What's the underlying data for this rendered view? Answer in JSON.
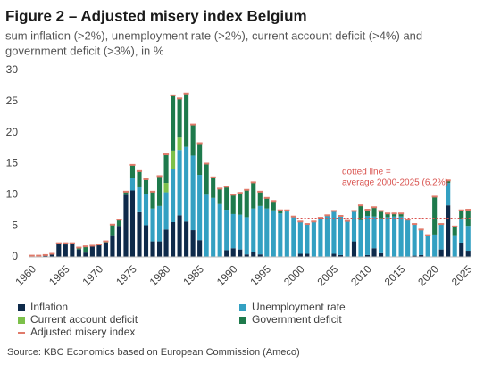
{
  "chart_data": {
    "type": "stacked_bar",
    "title": "Figure 2 – Adjusted misery index Belgium",
    "subtitle": [
      "sum inflation (>2%), unemployment rate (>2%), current account deficit (>4%) and",
      "government deficit (>3%), in %"
    ],
    "source": "Source: KBC Economics based on European Commission (Ameco)",
    "categories": [
      "1960",
      null,
      null,
      null,
      null,
      "1965",
      null,
      null,
      null,
      null,
      "1970",
      null,
      null,
      null,
      null,
      "1975",
      null,
      null,
      null,
      null,
      "1980",
      null,
      null,
      null,
      null,
      "1985",
      null,
      null,
      null,
      null,
      "1990",
      null,
      null,
      null,
      null,
      "1995",
      null,
      null,
      null,
      null,
      "2000",
      null,
      null,
      null,
      null,
      "2005",
      null,
      null,
      null,
      null,
      "2010",
      null,
      null,
      null,
      null,
      "2015",
      null,
      null,
      null,
      null,
      "2020",
      null,
      null,
      null,
      null,
      "2025"
    ],
    "series": [
      {
        "name": "Inflation",
        "color": "#0e2a4a",
        "values": [
          0.2,
          0.2,
          0.3,
          0.5,
          2.2,
          2.0,
          2.2,
          1.2,
          0.7,
          1.8,
          1.9,
          2.3,
          3.5,
          5.0,
          10.0,
          10.7,
          7.2,
          5.1,
          2.5,
          2.5,
          4.4,
          5.6,
          6.7,
          5.7,
          4.3,
          2.7,
          0,
          0,
          0,
          1.1,
          1.4,
          1.2,
          0.4,
          0.8,
          0.4,
          0,
          0,
          0,
          0,
          0,
          0.5,
          0.5,
          0,
          0,
          0,
          0.5,
          0.3,
          0,
          2.5,
          0,
          0.3,
          1.4,
          0.6,
          0,
          0,
          0,
          0,
          0.2,
          0.3,
          0,
          0,
          1.2,
          8.3,
          0,
          2.3,
          1.0
        ]
      },
      {
        "name": "Unemployment rate",
        "color": "#33a0c2",
        "values": [
          0,
          0,
          0,
          0,
          0,
          0,
          0,
          0,
          0,
          0,
          0,
          0,
          0,
          0,
          0,
          2.0,
          4.0,
          5.0,
          5.3,
          5.7,
          6.0,
          8.5,
          10.5,
          12.0,
          12.0,
          10.5,
          10.0,
          9.5,
          8.5,
          6.5,
          5.5,
          5.6,
          6.0,
          7.0,
          7.8,
          7.8,
          7.5,
          7.0,
          7.3,
          6.5,
          5.2,
          4.8,
          5.7,
          6.3,
          6.7,
          6.9,
          6.3,
          5.8,
          4.9,
          5.9,
          6.3,
          5.1,
          5.6,
          6.4,
          6.5,
          6.5,
          6.0,
          5.1,
          4.1,
          3.5,
          3.6,
          4.1,
          3.6,
          3.5,
          3.7,
          4.0
        ]
      },
      {
        "name": "Current account deficit",
        "color": "#7cc04a",
        "values": [
          0,
          0,
          0,
          0,
          0,
          0,
          0,
          0,
          0,
          0,
          0,
          0,
          0,
          0,
          0,
          0,
          0,
          0,
          0,
          0,
          1.5,
          3.0,
          2.0,
          0,
          0,
          0,
          0,
          0,
          0,
          0,
          0,
          0,
          0,
          0,
          0,
          0,
          0,
          0,
          0,
          0,
          0,
          0,
          0,
          0,
          0,
          0,
          0,
          0,
          0,
          0,
          0,
          0,
          0,
          0,
          0,
          0,
          0,
          0,
          0,
          0,
          0,
          0,
          0,
          0,
          0,
          0
        ]
      },
      {
        "name": "Government deficit",
        "color": "#1e7a4c",
        "values": [
          0,
          0,
          0,
          0,
          0,
          0.2,
          0,
          0.3,
          1.0,
          0,
          0.1,
          0.2,
          1.7,
          1.0,
          0.5,
          2.1,
          2.6,
          2.4,
          2.7,
          4.8,
          4.6,
          8.9,
          6.3,
          8.6,
          5.0,
          5.1,
          5.0,
          3.3,
          2.5,
          3.7,
          3.1,
          3.5,
          4.4,
          4.2,
          2.3,
          1.7,
          1.5,
          0.5,
          0.2,
          0,
          0,
          0,
          0,
          0,
          0,
          0,
          0,
          0,
          0,
          2.4,
          1.0,
          1.5,
          1.2,
          0.6,
          0.5,
          0.5,
          0,
          0,
          0,
          0,
          6.1,
          0,
          0.4,
          1.4,
          1.5,
          2.6
        ]
      },
      {
        "name": "Adjusted misery index",
        "color": "#e07a6a",
        "type": "marker",
        "values": [
          0.2,
          0.2,
          0.3,
          0.5,
          2.2,
          2.2,
          2.2,
          1.5,
          1.7,
          1.8,
          2.0,
          2.5,
          5.2,
          6.0,
          10.5,
          14.8,
          13.8,
          12.5,
          10.5,
          13.0,
          16.5,
          26.0,
          25.5,
          26.3,
          21.3,
          18.3,
          15.0,
          12.8,
          11.0,
          11.3,
          10.0,
          10.3,
          10.8,
          12.0,
          10.5,
          9.5,
          9.0,
          7.5,
          7.5,
          6.5,
          5.7,
          5.3,
          5.7,
          6.3,
          6.7,
          7.4,
          6.6,
          5.8,
          7.4,
          8.3,
          7.6,
          8.0,
          7.4,
          7.0,
          7.0,
          7.0,
          6.0,
          5.3,
          4.4,
          3.5,
          9.7,
          5.3,
          12.3,
          4.9,
          7.5,
          7.6
        ]
      }
    ],
    "reference_line": {
      "value": 6.2,
      "from": "2000",
      "to": "2025",
      "color": "#d9534f",
      "label": [
        "dotted line =",
        "average 2000-2025 (6.2%)"
      ]
    },
    "ylim": [
      0,
      30
    ],
    "yticks": [
      0,
      5,
      10,
      15,
      20,
      25,
      30
    ],
    "grid": false
  }
}
